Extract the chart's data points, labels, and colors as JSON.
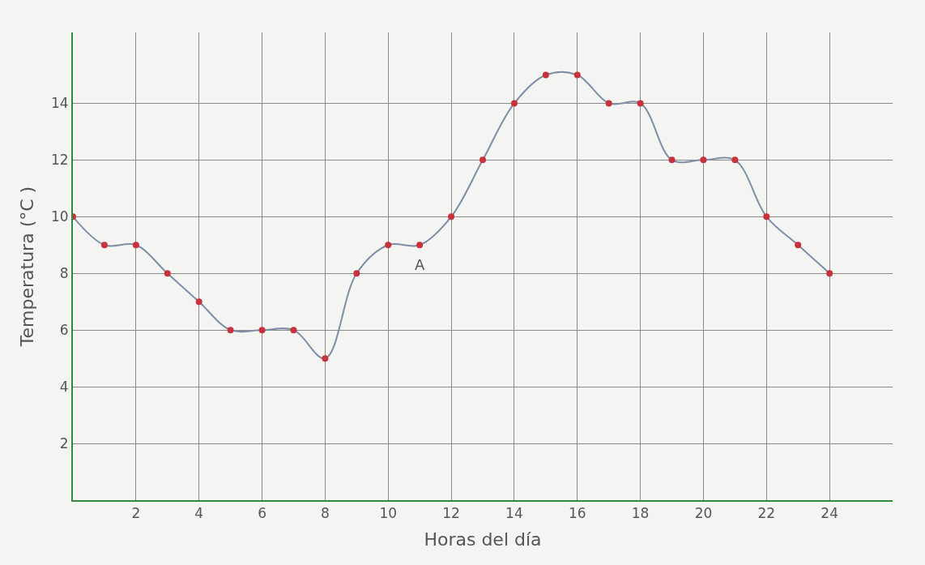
{
  "chart_data": {
    "type": "line",
    "xlabel": "Horas del día",
    "ylabel": "Temperatura (°C )",
    "x": [
      0,
      1,
      2,
      3,
      4,
      5,
      6,
      7,
      8,
      9,
      10,
      11,
      12,
      13,
      14,
      15,
      16,
      17,
      18,
      19,
      20,
      21,
      22,
      23,
      24
    ],
    "series": [
      {
        "color": "#7d8fa6",
        "values": [
          10,
          9,
          9,
          8,
          7,
          6,
          6,
          6,
          5,
          8,
          9,
          9,
          10,
          12,
          14,
          15,
          15,
          14,
          14,
          12,
          12,
          12,
          10,
          9,
          8
        ]
      }
    ],
    "marker": "circle",
    "xlim": [
      0,
      26
    ],
    "ylim": [
      0,
      16.5
    ],
    "xticks": [
      2,
      4,
      6,
      8,
      10,
      12,
      14,
      16,
      18,
      20,
      22,
      24
    ],
    "yticks": [
      2,
      4,
      6,
      8,
      10,
      12,
      14
    ],
    "grid": true,
    "legend": false,
    "annotations": [
      {
        "text": "A",
        "x": 11,
        "y": 9
      }
    ]
  }
}
